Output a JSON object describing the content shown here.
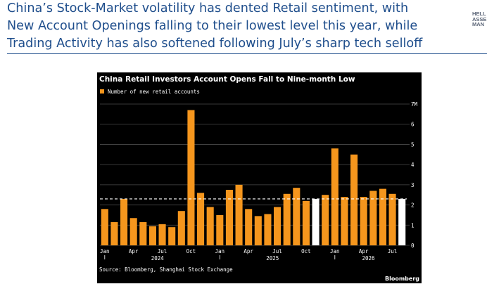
{
  "headline": {
    "line1": "China’s Stock-Market volatility has dented Retail sentiment, with",
    "line2": "New Account Openings falling to their lowest level this year, while",
    "line3": "Trading Activity has also softened following July’s sharp tech selloff"
  },
  "logo": {
    "line1": "HELL",
    "line2": "ASSE",
    "line3": "MAN"
  },
  "chart_data": {
    "type": "bar",
    "title": "China Retail Investors Account Opens Fall to Nine-month Low",
    "legend": "Number of new retail accounts",
    "legend_position": "top-left",
    "source": "Source: Bloomberg, Shanghai Stock Exchange",
    "brand": "Bloomberg",
    "unit_label": "7M",
    "ylim": [
      0,
      7
    ],
    "y_ticks": [
      {
        "value": 7,
        "label": "7M"
      },
      {
        "value": 6,
        "label": "6"
      },
      {
        "value": 5,
        "label": "5"
      },
      {
        "value": 4,
        "label": "4"
      },
      {
        "value": 3,
        "label": "3"
      },
      {
        "value": 2,
        "label": "2"
      },
      {
        "value": 1,
        "label": "1"
      },
      {
        "value": 0,
        "label": "0"
      }
    ],
    "grid": true,
    "reference_line": 2.3,
    "x_month_labels": [
      {
        "index": 0,
        "label": "Jan"
      },
      {
        "index": 3,
        "label": "Apr"
      },
      {
        "index": 6,
        "label": "Jul"
      },
      {
        "index": 9,
        "label": "Oct"
      },
      {
        "index": 12,
        "label": "Jan"
      },
      {
        "index": 15,
        "label": "Apr"
      },
      {
        "index": 18,
        "label": "Jul"
      },
      {
        "index": 21,
        "label": "Oct"
      },
      {
        "index": 24,
        "label": "Jan"
      },
      {
        "index": 27,
        "label": "Apr"
      },
      {
        "index": 30,
        "label": "Jul"
      }
    ],
    "x_year_labels": [
      {
        "start": 0,
        "end": 11,
        "label": "2024"
      },
      {
        "start": 12,
        "end": 23,
        "label": "2025"
      },
      {
        "start": 24,
        "end": 31,
        "label": "2026"
      }
    ],
    "values": [
      1.8,
      1.15,
      2.3,
      1.35,
      1.15,
      0.95,
      1.05,
      0.9,
      1.7,
      6.7,
      2.6,
      1.9,
      1.5,
      2.75,
      3.0,
      1.8,
      1.45,
      1.55,
      1.9,
      2.55,
      2.85,
      2.2,
      2.3,
      2.5,
      4.8,
      2.4,
      4.5,
      2.4,
      2.7,
      2.8,
      2.55,
      2.3
    ],
    "highlight_indices": [
      22,
      31
    ],
    "colors": {
      "bar": "#f5961d",
      "highlight": "#ffffff",
      "background": "#000000",
      "grid": "#4a4a4a",
      "text": "#ffffff"
    }
  }
}
